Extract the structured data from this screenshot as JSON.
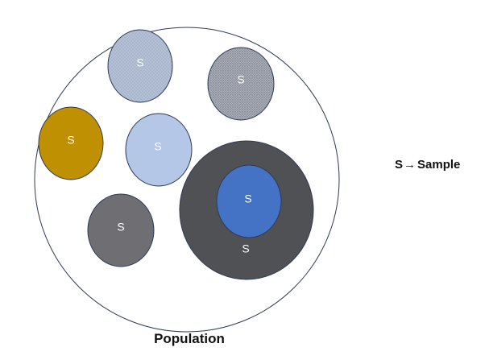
{
  "population": {
    "label": "Population"
  },
  "legend": {
    "symbol": "S",
    "arrow": "→",
    "meaning": "Sample"
  },
  "samples": [
    {
      "label": "S",
      "fill": "#b4c0d6",
      "pattern": "dots",
      "text_color": "#ffffff"
    },
    {
      "label": "S",
      "fill": "#a9adb7",
      "pattern": "dots",
      "text_color": "#ffffff"
    },
    {
      "label": "S",
      "fill": "#bf9001",
      "pattern": "none",
      "text_color": "#ffffff"
    },
    {
      "label": "S",
      "fill": "#b4c7e7",
      "pattern": "none",
      "text_color": "#ffffff"
    },
    {
      "label": "S",
      "fill": "#6e6e73",
      "pattern": "none",
      "text_color": "#ffffff"
    },
    {
      "label": "S",
      "fill": "#505155",
      "pattern": "none",
      "text_color": "#ffffff"
    },
    {
      "label": "S",
      "fill": "#4472c4",
      "pattern": "none",
      "text_color": "#ffffff"
    }
  ],
  "colors": {
    "outline": "#2f3a56",
    "population_fill": "#ffffff"
  }
}
